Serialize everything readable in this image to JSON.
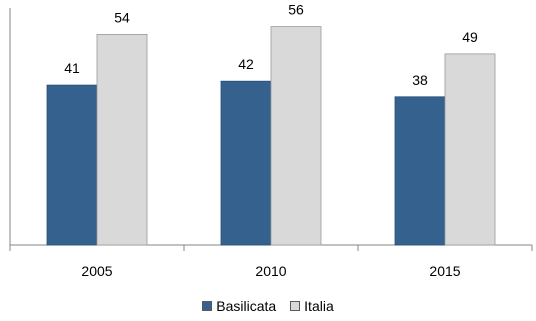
{
  "chart_data": {
    "type": "bar",
    "categories": [
      "2005",
      "2010",
      "2015"
    ],
    "series": [
      {
        "name": "Basilicata",
        "values": [
          41,
          42,
          38
        ],
        "color": "#35618f"
      },
      {
        "name": "Italia",
        "values": [
          54,
          56,
          49
        ],
        "color": "#d9d9d9"
      }
    ],
    "title": "",
    "xlabel": "",
    "ylabel": "",
    "ylim": [
      0,
      60
    ],
    "grid": false,
    "legend": "bottom",
    "data_labels": true
  }
}
